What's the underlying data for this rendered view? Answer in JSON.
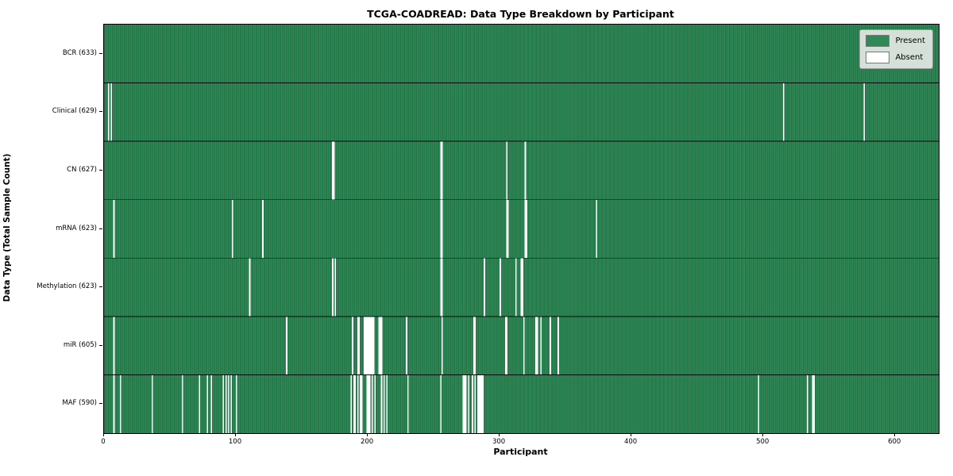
{
  "figure": {
    "colors": {
      "present": "#2e8b57",
      "present_edge": "#1d5c39",
      "absent": "#ffffff",
      "legend_bg": "#e4e8e4",
      "spine": "#000000"
    }
  },
  "chart_data": {
    "type": "heatmap",
    "title": "TCGA-COADREAD: Data Type Breakdown by Participant",
    "xlabel": "Participant",
    "ylabel": "Data Type (Total Sample Count)",
    "legend": [
      "Present",
      "Absent"
    ],
    "legend_position": "upper right",
    "n_participants": 633,
    "x_ticks": [
      0,
      100,
      200,
      300,
      400,
      500,
      600
    ],
    "xlim": [
      0,
      633
    ],
    "grid": false,
    "value_encoding": {
      "present": 1,
      "absent": 0
    },
    "rows": [
      {
        "label": "BCR (633)",
        "name": "BCR",
        "total": 633,
        "absent": []
      },
      {
        "label": "Clinical (629)",
        "name": "Clinical",
        "total": 629,
        "absent": [
          3,
          5,
          515,
          576
        ]
      },
      {
        "label": "CN (627)",
        "name": "CN",
        "total": 627,
        "absent": [
          173,
          174,
          255,
          256,
          305,
          319
        ]
      },
      {
        "label": "mRNA (623)",
        "name": "mRNA",
        "total": 623,
        "absent": [
          7,
          97,
          120,
          255,
          256,
          305,
          306,
          319,
          320,
          373
        ]
      },
      {
        "label": "Methylation (623)",
        "name": "Methylation",
        "total": 623,
        "absent": [
          110,
          173,
          175,
          255,
          256,
          288,
          300,
          312,
          316,
          317
        ]
      },
      {
        "label": "miR (605)",
        "name": "miR",
        "total": 605,
        "absent": [
          7,
          138,
          188,
          192,
          193,
          197,
          198,
          199,
          200,
          201,
          202,
          203,
          204,
          208,
          209,
          210,
          229,
          256,
          280,
          281,
          304,
          305,
          318,
          327,
          328,
          331,
          338,
          344
        ]
      },
      {
        "label": "MAF (590)",
        "name": "MAF",
        "total": 590,
        "absent": [
          7,
          12,
          36,
          59,
          72,
          78,
          81,
          90,
          92,
          94,
          96,
          100,
          187,
          189,
          190,
          192,
          194,
          195,
          199,
          200,
          201,
          203,
          205,
          210,
          212,
          214,
          230,
          255,
          272,
          273,
          274,
          276,
          279,
          281,
          283,
          284,
          285,
          286,
          287,
          496,
          533,
          537,
          538
        ]
      }
    ]
  }
}
